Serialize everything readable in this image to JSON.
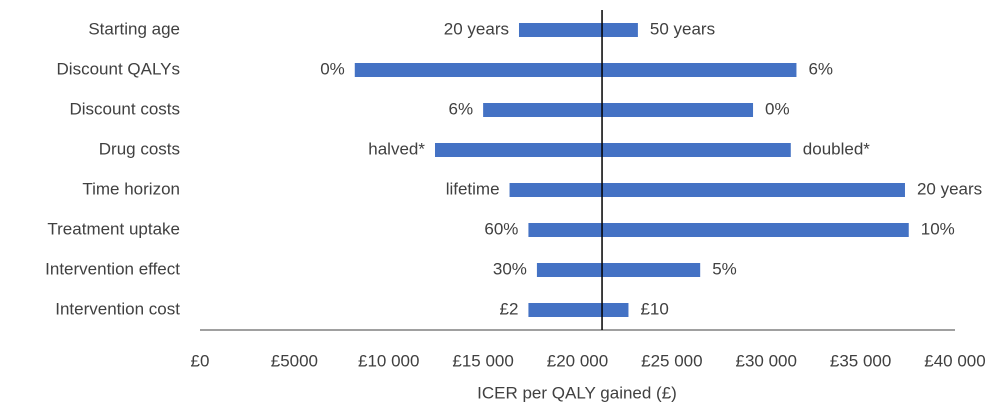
{
  "chart_data": {
    "type": "tornado",
    "categories": [
      "Starting age",
      "Discount QALYs",
      "Discount costs",
      "Drug costs",
      "Time horizon",
      "Treatment uptake",
      "Intervention effect",
      "Intervention cost"
    ],
    "baseline": 21300,
    "series": [
      {
        "color": "#4472c4",
        "values": [
          16900,
          8200,
          15000,
          12450,
          16400,
          17400,
          17850,
          17400
        ],
        "labels": [
          "20 years",
          "0%",
          "6%",
          "halved*",
          "lifetime",
          "60%",
          "30%",
          "£2"
        ]
      },
      {
        "color": "#4472c4",
        "values": [
          23200,
          31600,
          29300,
          31300,
          37350,
          37550,
          26500,
          22700
        ],
        "labels": [
          "50 years",
          "6%",
          "0%",
          "doubled*",
          "20 years",
          "10%",
          "5%",
          "£10"
        ]
      }
    ],
    "xlim": [
      0,
      40000
    ],
    "xticks": [
      {
        "value": 0,
        "label": "£0"
      },
      {
        "value": 5000,
        "label": "£5000"
      },
      {
        "value": 10000,
        "label": "£10 000"
      },
      {
        "value": 15000,
        "label": "£15 000"
      },
      {
        "value": 20000,
        "label": "£20 000"
      },
      {
        "value": 25000,
        "label": "£25 000"
      },
      {
        "value": 30000,
        "label": "£30 000"
      },
      {
        "value": 35000,
        "label": "£35 000"
      },
      {
        "value": 40000,
        "label": "£40 000"
      }
    ],
    "xlabel": "ICER per QALY gained (£)"
  }
}
